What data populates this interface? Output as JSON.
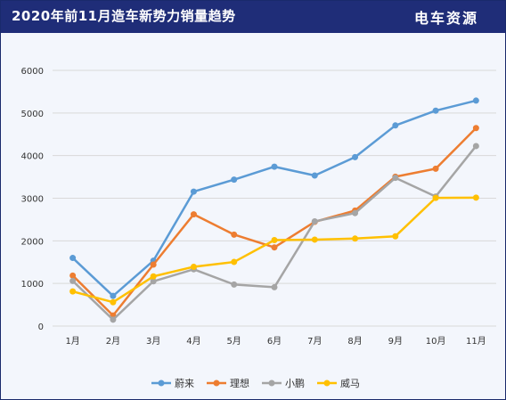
{
  "header": {
    "title": "2020年前11月造车新势力销量趋势",
    "brand": "电车资源"
  },
  "colors": {
    "header_bg": "#1f2d78",
    "background": "#f3f6fc",
    "grid": "#d9d9d9"
  },
  "chart_data": {
    "type": "line",
    "title": "2020年前11月造车新势力销量趋势",
    "xlabel": "",
    "ylabel": "",
    "categories": [
      "1月",
      "2月",
      "3月",
      "4月",
      "5月",
      "6月",
      "7月",
      "8月",
      "9月",
      "10月",
      "11月"
    ],
    "ylim": [
      0,
      6000
    ],
    "yticks": [
      0,
      1000,
      2000,
      3000,
      4000,
      5000,
      6000
    ],
    "grid": true,
    "legend": "bottom",
    "series": [
      {
        "name": "蔚来",
        "color": "#5b9bd5",
        "values": [
          1598,
          707,
          1533,
          3155,
          3436,
          3740,
          3533,
          3965,
          4708,
          5055,
          5291
        ]
      },
      {
        "name": "理想",
        "color": "#ed7d31",
        "values": [
          1185,
          248,
          1443,
          2622,
          2146,
          1846,
          2446,
          2711,
          3504,
          3692,
          4646
        ]
      },
      {
        "name": "小鹏",
        "color": "#a5a5a5",
        "values": [
          1059,
          150,
          1050,
          1332,
          975,
          911,
          2456,
          2651,
          3478,
          3040,
          4224
        ]
      },
      {
        "name": "威马",
        "color": "#ffc000",
        "values": [
          812,
          560,
          1165,
          1391,
          1504,
          2017,
          2029,
          2053,
          2107,
          3008,
          3014
        ]
      }
    ]
  }
}
